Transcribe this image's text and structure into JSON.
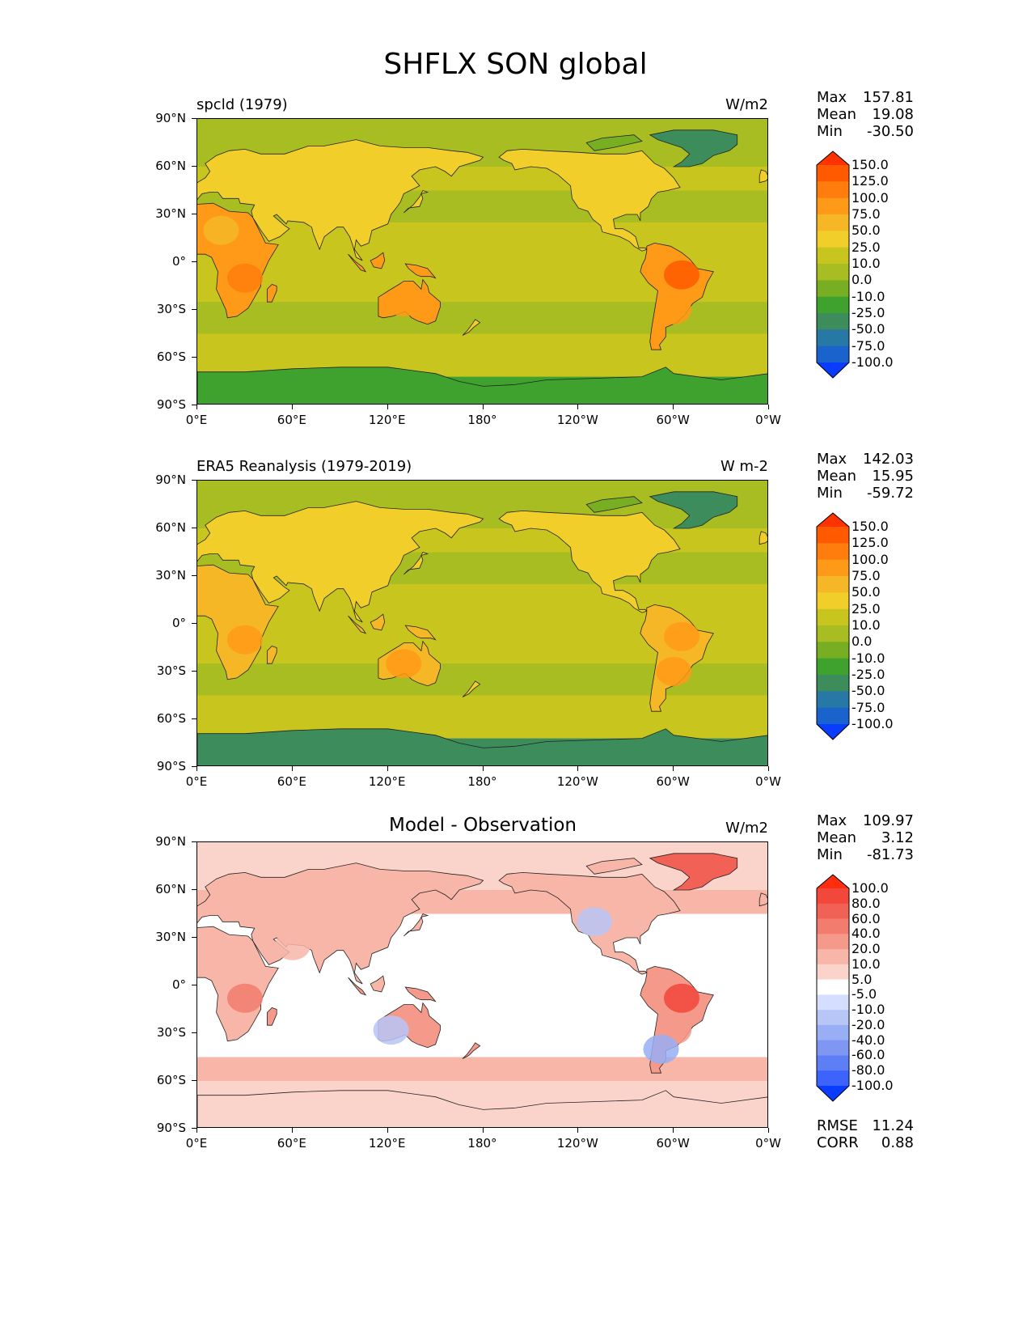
{
  "figure": {
    "title": "SHFLX SON global"
  },
  "x_ticks": [
    "0°E",
    "60°E",
    "120°E",
    "180°",
    "120°W",
    "60°W",
    "0°W"
  ],
  "y_ticks": [
    "90°N",
    "60°N",
    "30°N",
    "0°",
    "30°S",
    "60°S",
    "90°S"
  ],
  "panels": [
    {
      "id": "model",
      "title": "spcld (1979)",
      "units": "W/m2",
      "stats": {
        "max_label": "Max",
        "max": "157.81",
        "mean_label": "Mean",
        "mean": "19.08",
        "min_label": "Min",
        "min": "-30.50"
      },
      "colorbar": {
        "labels": [
          "150.0",
          "125.0",
          "100.0",
          "75.0",
          "50.0",
          "25.0",
          "10.0",
          "0.0",
          "-10.0",
          "-25.0",
          "-50.0",
          "-75.0",
          "-100.0"
        ],
        "colors": [
          "#ff3300",
          "#ff5a00",
          "#ff7d0d",
          "#ff9a18",
          "#f5b726",
          "#f2ce2a",
          "#c8c51f",
          "#a7bd21",
          "#78af22",
          "#3fa22e",
          "#3d8c5c",
          "#2878a6",
          "#1a62cc",
          "#0a3cff"
        ]
      }
    },
    {
      "id": "obs",
      "title": "ERA5 Reanalysis (1979-2019)",
      "units": "W m-2",
      "stats": {
        "max_label": "Max",
        "max": "142.03",
        "mean_label": "Mean",
        "mean": "15.95",
        "min_label": "Min",
        "min": "-59.72"
      },
      "colorbar": {
        "labels": [
          "150.0",
          "125.0",
          "100.0",
          "75.0",
          "50.0",
          "25.0",
          "10.0",
          "0.0",
          "-10.0",
          "-25.0",
          "-50.0",
          "-75.0",
          "-100.0"
        ],
        "colors": [
          "#ff3300",
          "#ff5a00",
          "#ff7d0d",
          "#ff9a18",
          "#f5b726",
          "#f2ce2a",
          "#c8c51f",
          "#a7bd21",
          "#78af22",
          "#3fa22e",
          "#3d8c5c",
          "#2878a6",
          "#1a62cc",
          "#0a3cff"
        ]
      }
    },
    {
      "id": "diff",
      "title": "Model - Observation",
      "units": "W/m2",
      "stats": {
        "max_label": "Max",
        "max": "109.97",
        "mean_label": "Mean",
        "mean": "3.12",
        "min_label": "Min",
        "min": "-81.73"
      },
      "extra_stats": {
        "rmse_label": "RMSE",
        "rmse": "11.24",
        "corr_label": "CORR",
        "corr": "0.88"
      },
      "colorbar": {
        "labels": [
          "100.0",
          "80.0",
          "60.0",
          "40.0",
          "20.0",
          "10.0",
          "5.0",
          "-5.0",
          "-10.0",
          "-20.0",
          "-40.0",
          "-60.0",
          "-80.0",
          "-100.0"
        ],
        "colors": [
          "#ff2d0f",
          "#f2473b",
          "#f26155",
          "#f27d6e",
          "#f5998a",
          "#f7b6a8",
          "#fad4cb",
          "#ffffff",
          "#d5deff",
          "#b7c6f7",
          "#98aef5",
          "#7f96f2",
          "#5d7ef5",
          "#3d63ff",
          "#0a3cff"
        ]
      }
    }
  ]
}
